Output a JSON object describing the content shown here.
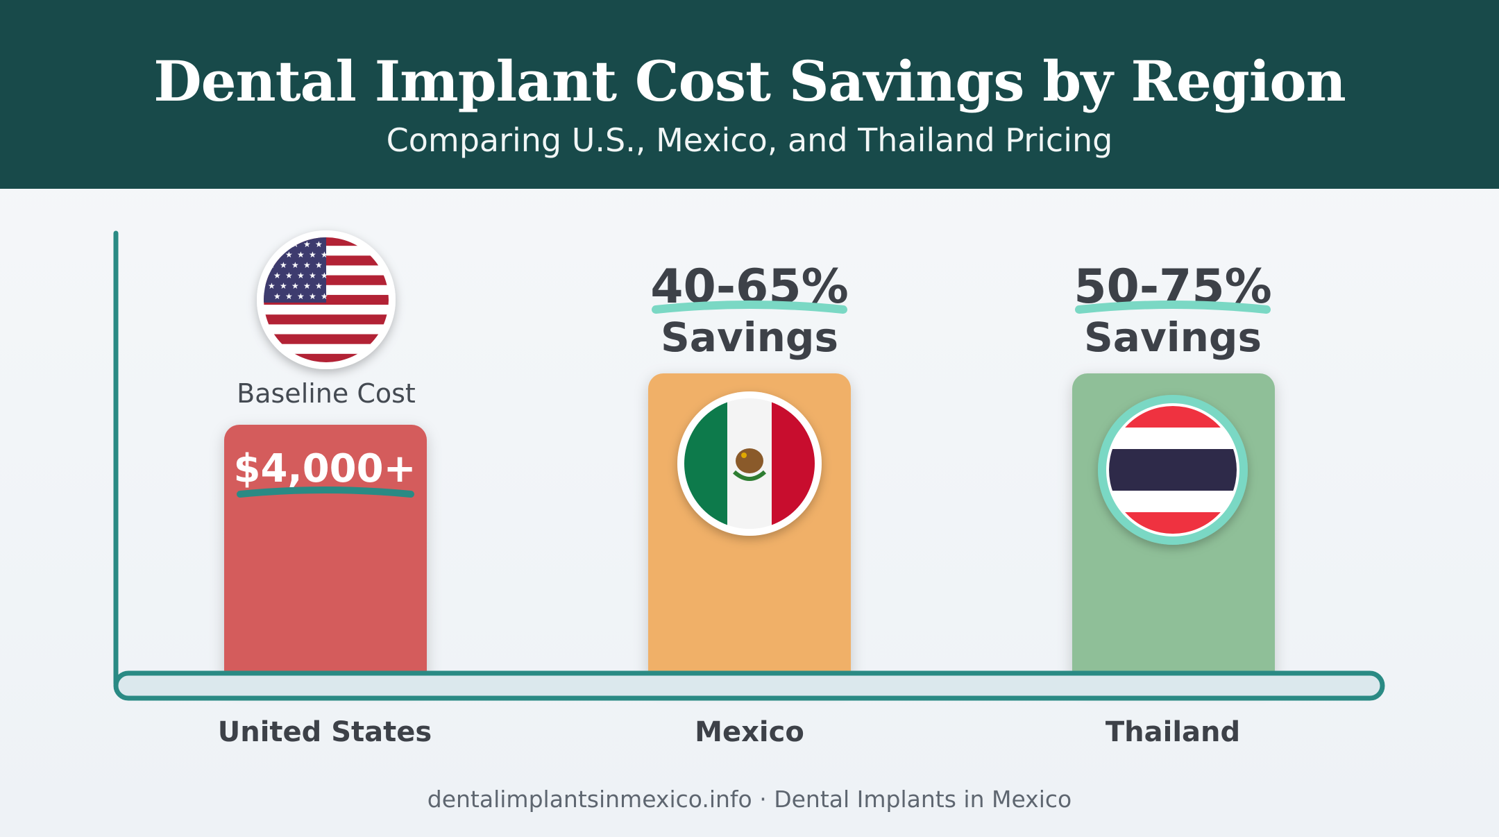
{
  "header": {
    "title": "Dental Implant Cost Savings by Region",
    "subtitle": "Comparing U.S., Mexico, and Thailand Pricing"
  },
  "chart_data": {
    "type": "bar",
    "title": "Dental Implant Cost Savings by Region",
    "subtitle": "Comparing U.S., Mexico, and Thailand Pricing",
    "xlabel": "",
    "ylabel": "",
    "categories": [
      "United States",
      "Mexico",
      "Thailand"
    ],
    "bars": [
      {
        "category": "United States",
        "bar_label": "$4,000+",
        "note": "Baseline Cost",
        "savings_label": "",
        "savings_word": "",
        "flag": "us-flag-icon",
        "color": "#d45c5c"
      },
      {
        "category": "Mexico",
        "bar_label": "",
        "note": "",
        "savings_label": "40-65%",
        "savings_word": "Savings",
        "flag": "mexico-flag-icon",
        "color": "#f0b067"
      },
      {
        "category": "Thailand",
        "bar_label": "",
        "note": "",
        "savings_label": "50-75%",
        "savings_word": "Savings",
        "flag": "thailand-flag-icon",
        "color": "#8fbf98"
      }
    ],
    "accent_color": "#2a8a84",
    "underline_color": "#7ad8c4",
    "grid": false,
    "legend": "none"
  },
  "footer": {
    "text": "dentalimplantsinmexico.info · Dental Implants in Mexico"
  }
}
